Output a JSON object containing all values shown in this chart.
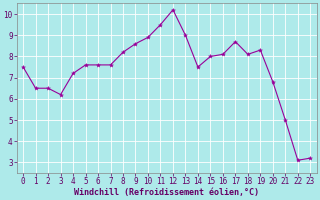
{
  "x": [
    0,
    1,
    2,
    3,
    4,
    5,
    6,
    7,
    8,
    9,
    10,
    11,
    12,
    13,
    14,
    15,
    16,
    17,
    18,
    19,
    20,
    21,
    22,
    23
  ],
  "y": [
    7.5,
    6.5,
    6.5,
    6.2,
    7.2,
    7.6,
    7.6,
    7.6,
    8.2,
    8.6,
    8.9,
    9.5,
    10.2,
    9.0,
    7.5,
    8.0,
    8.1,
    8.7,
    8.1,
    8.3,
    6.8,
    5.0,
    3.1,
    3.2
  ],
  "xlabel": "Windchill (Refroidissement éolien,°C)",
  "xlim": [
    -0.5,
    23.5
  ],
  "ylim": [
    2.5,
    10.5
  ],
  "yticks": [
    3,
    4,
    5,
    6,
    7,
    8,
    9,
    10
  ],
  "xticks": [
    0,
    1,
    2,
    3,
    4,
    5,
    6,
    7,
    8,
    9,
    10,
    11,
    12,
    13,
    14,
    15,
    16,
    17,
    18,
    19,
    20,
    21,
    22,
    23
  ],
  "line_color": "#990099",
  "marker_color": "#990099",
  "bg_color": "#aeeaea",
  "grid_color": "#c8e8e8",
  "spine_color": "#888888",
  "tick_color": "#660066",
  "label_color": "#660066",
  "font_size": 5.5,
  "xlabel_size": 6.0
}
